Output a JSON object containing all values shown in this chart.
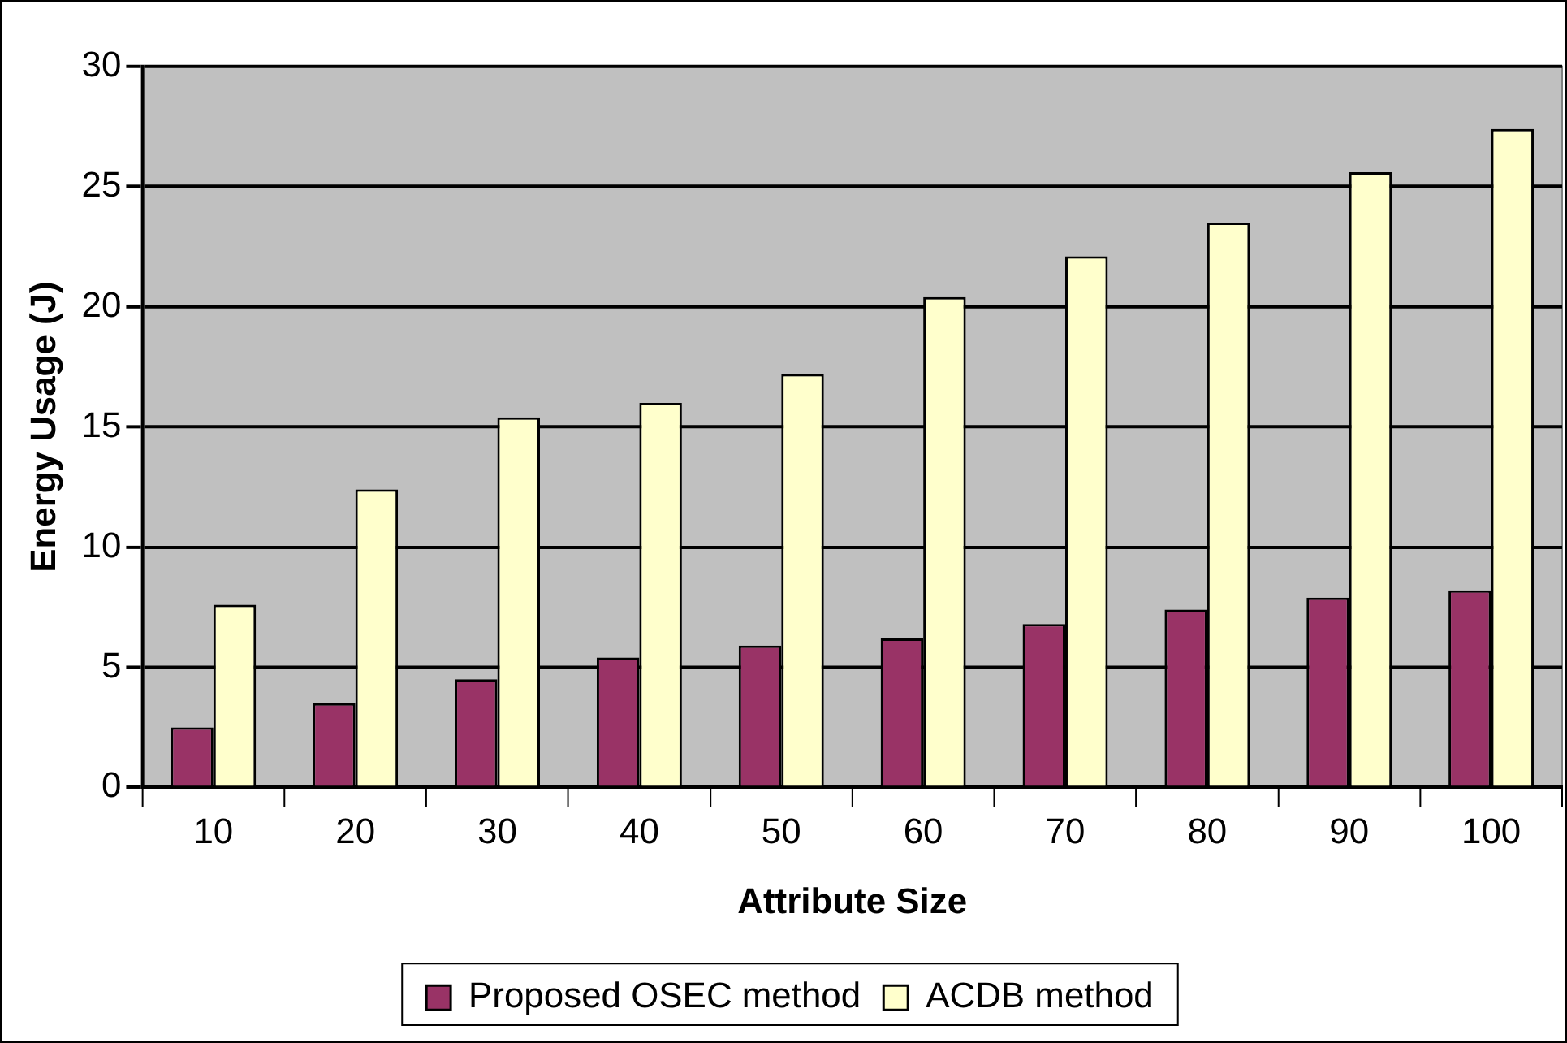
{
  "chart_data": {
    "type": "bar",
    "xlabel": "Attribute Size",
    "ylabel": "Energy Usage (J)",
    "categories": [
      "10",
      "20",
      "30",
      "40",
      "50",
      "60",
      "70",
      "80",
      "90",
      "100"
    ],
    "series": [
      {
        "name": "Proposed OSEC method",
        "color": "#993366",
        "values": [
          2.5,
          3.5,
          4.5,
          5.4,
          5.9,
          6.2,
          6.8,
          7.4,
          7.9,
          8.2
        ]
      },
      {
        "name": "ACDB method",
        "color": "#ffffcc",
        "values": [
          7.6,
          12.4,
          15.4,
          16.0,
          17.2,
          20.4,
          22.1,
          23.5,
          25.6,
          27.4
        ]
      }
    ],
    "ylim": [
      0,
      30
    ],
    "yticks": [
      0,
      5,
      10,
      15,
      20,
      25,
      30
    ],
    "grid": "y",
    "legend": "bottom"
  }
}
